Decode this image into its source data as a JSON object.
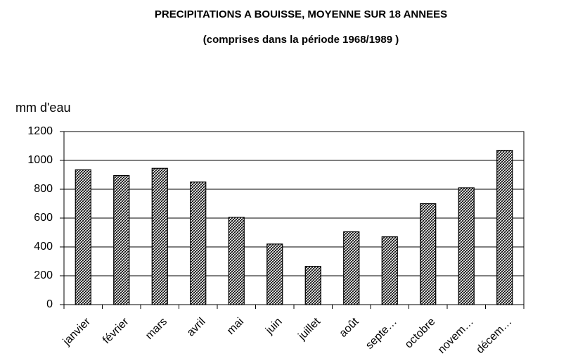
{
  "chart_data": {
    "type": "bar",
    "title": "PRECIPITATIONS A BOUISSE, MOYENNE SUR 18 ANNEES",
    "subtitle": "(comprises dans la période 1968/1989 )",
    "y_label": "mm d'eau",
    "categories": [
      "janvier",
      "février",
      "mars",
      "avril",
      "mai",
      "juin",
      "juillet",
      "août",
      "septe…",
      "octobre",
      "novem…",
      "décem…"
    ],
    "values": [
      935,
      895,
      945,
      850,
      605,
      420,
      265,
      505,
      470,
      700,
      810,
      1070
    ],
    "color": "#000000",
    "ylim": [
      0,
      1200
    ],
    "yticks": [
      0,
      200,
      400,
      600,
      800,
      1000,
      1200
    ],
    "grid": true
  }
}
